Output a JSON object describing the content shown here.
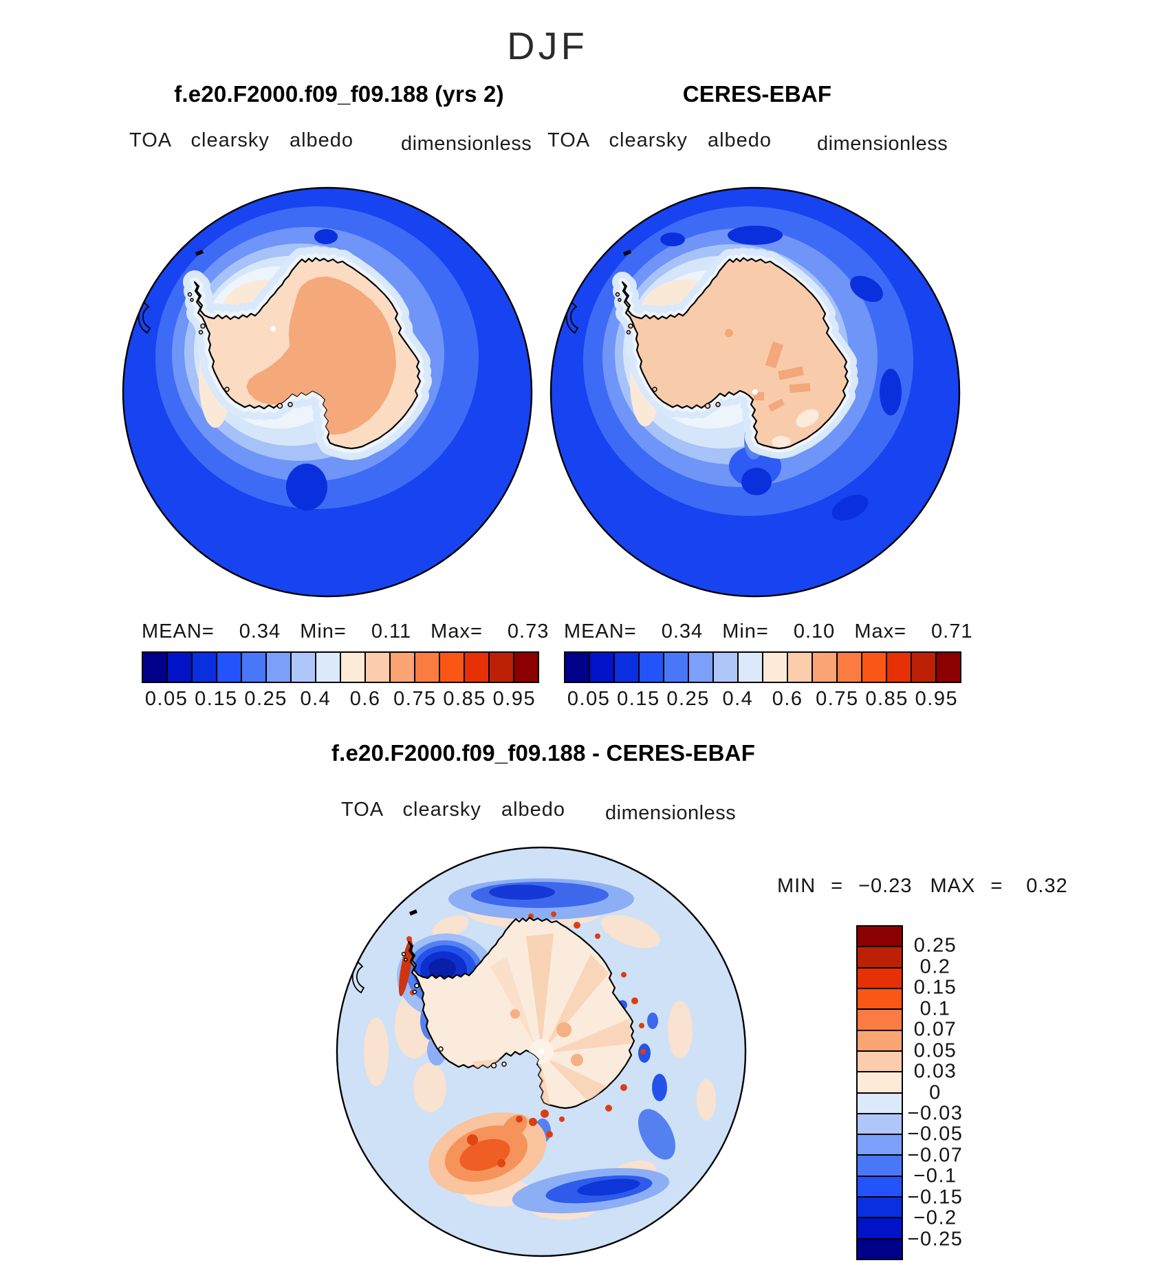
{
  "header": {
    "season_title": "DJF"
  },
  "panels": {
    "model": {
      "title": "f.e20.F2000.f09_f09.188 (yrs 2)",
      "variable": "TOA clearsky albedo",
      "units": "dimensionless",
      "stats": {
        "mean_label": "MEAN=",
        "mean": "0.34",
        "min_label": "Min=",
        "min": "0.11",
        "max_label": "Max=",
        "max": "0.73"
      }
    },
    "obs": {
      "title": "CERES-EBAF",
      "variable": "TOA clearsky albedo",
      "units": "dimensionless",
      "stats": {
        "mean_label": "MEAN=",
        "mean": "0.34",
        "min_label": "Min=",
        "min": "0.10",
        "max_label": "Max=",
        "max": "0.71"
      }
    },
    "diff": {
      "title": "f.e20.F2000.f09_f09.188 - CERES-EBAF",
      "variable": "TOA clearsky albedo",
      "units": "dimensionless",
      "stats": {
        "min_label": "MIN",
        "min_eq": "=",
        "min": "−0.23",
        "max_label": "MAX",
        "max_eq": "=",
        "max": "0.32"
      }
    }
  },
  "colorbars": {
    "albedo": {
      "orientation": "horizontal",
      "colors": [
        "#00008B",
        "#0013C6",
        "#0A2FE0",
        "#2353FB",
        "#4878F8",
        "#7C9FFA",
        "#AEC6F8",
        "#DBE9FB",
        "#FDEBD7",
        "#FBCDAC",
        "#FBA474",
        "#FB7C42",
        "#FA5716",
        "#E63005",
        "#BC2105",
        "#8B0000"
      ],
      "ticks": [
        {
          "label": "0.05",
          "pos": 1
        },
        {
          "label": "0.15",
          "pos": 3
        },
        {
          "label": "0.25",
          "pos": 5
        },
        {
          "label": "0.4",
          "pos": 7
        },
        {
          "label": "0.6",
          "pos": 9
        },
        {
          "label": "0.75",
          "pos": 11
        },
        {
          "label": "0.85",
          "pos": 13
        },
        {
          "label": "0.95",
          "pos": 15
        }
      ]
    },
    "difference": {
      "orientation": "vertical",
      "colors": [
        "#8B0000",
        "#BC2105",
        "#E63005",
        "#FA5716",
        "#FB7C42",
        "#FBA474",
        "#FBCDAC",
        "#FDEBD7",
        "#DBE9FB",
        "#AEC6F8",
        "#7C9FFA",
        "#4878F8",
        "#2353FB",
        "#0A2FE0",
        "#0013C6",
        "#00008B"
      ],
      "ticks": [
        {
          "label": "0.25",
          "pos": 1
        },
        {
          "label": "0.2",
          "pos": 2
        },
        {
          "label": "0.15",
          "pos": 3
        },
        {
          "label": "0.1",
          "pos": 4
        },
        {
          "label": "0.07",
          "pos": 5
        },
        {
          "label": "0.05",
          "pos": 6
        },
        {
          "label": "0.03",
          "pos": 7
        },
        {
          "label": "0",
          "pos": 8
        },
        {
          "label": "−0.03",
          "pos": 9
        },
        {
          "label": "−0.05",
          "pos": 10
        },
        {
          "label": "−0.07",
          "pos": 11
        },
        {
          "label": "−0.1",
          "pos": 12
        },
        {
          "label": "−0.15",
          "pos": 13
        },
        {
          "label": "−0.2",
          "pos": 14
        },
        {
          "label": "−0.25",
          "pos": 15
        }
      ]
    }
  },
  "chart_data": [
    {
      "type": "heatmap",
      "panel": "model",
      "title": "f.e20.F2000.f09_f09.188 (yrs 2)",
      "season": "DJF",
      "variable": "TOA clearsky albedo",
      "units": "dimensionless",
      "projection": "south polar stereographic (Antarctica)",
      "stats": {
        "mean": 0.34,
        "min": 0.11,
        "max": 0.73
      },
      "contour_levels": [
        0.05,
        0.1,
        0.15,
        0.2,
        0.25,
        0.3,
        0.4,
        0.5,
        0.6,
        0.7,
        0.75,
        0.8,
        0.85,
        0.9,
        0.95
      ],
      "labeled_levels": [
        0.05,
        0.15,
        0.25,
        0.4,
        0.6,
        0.75,
        0.85,
        0.95
      ],
      "legend_position": "bottom",
      "description": "High clear-sky albedo (~0.6-0.8, salmon/peach) over the Antarctic continent; low albedo (~0.1-0.25, blues) over the surrounding Southern Ocean; intermediate pale band (sea ice) along the Weddell and West Antarctic coasts"
    },
    {
      "type": "heatmap",
      "panel": "obs",
      "title": "CERES-EBAF",
      "season": "DJF",
      "variable": "TOA clearsky albedo",
      "units": "dimensionless",
      "projection": "south polar stereographic (Antarctica)",
      "stats": {
        "mean": 0.34,
        "min": 0.1,
        "max": 0.71
      },
      "contour_levels": [
        0.05,
        0.1,
        0.15,
        0.2,
        0.25,
        0.3,
        0.4,
        0.5,
        0.6,
        0.7,
        0.75,
        0.8,
        0.85,
        0.9,
        0.95
      ],
      "labeled_levels": [
        0.05,
        0.15,
        0.25,
        0.4,
        0.6,
        0.75,
        0.85,
        0.95
      ],
      "legend_position": "bottom",
      "description": "Observed clear-sky albedo: nearly uniform peach (~0.6-0.7) continent with small darker interior patches; blocky blue ocean bands"
    },
    {
      "type": "heatmap",
      "panel": "difference",
      "title": "f.e20.F2000.f09_f09.188 - CERES-EBAF",
      "season": "DJF",
      "variable": "TOA clearsky albedo",
      "units": "dimensionless",
      "projection": "south polar stereographic (Antarctica)",
      "stats": {
        "min": -0.23,
        "max": 0.32
      },
      "contour_levels": [
        -0.25,
        -0.2,
        -0.15,
        -0.1,
        -0.07,
        -0.05,
        -0.03,
        0,
        0.03,
        0.05,
        0.07,
        0.1,
        0.15,
        0.2,
        0.25
      ],
      "legend_position": "right",
      "description": "Differences mostly within ±0.05: strong negative (model low, dark blue) northwest of the Antarctic Peninsula and along bottom-right arc; strong positive (model high, orange/red) in the Ross/Amundsen coastal sector at lower left; small red speckles along the coastline"
    }
  ]
}
